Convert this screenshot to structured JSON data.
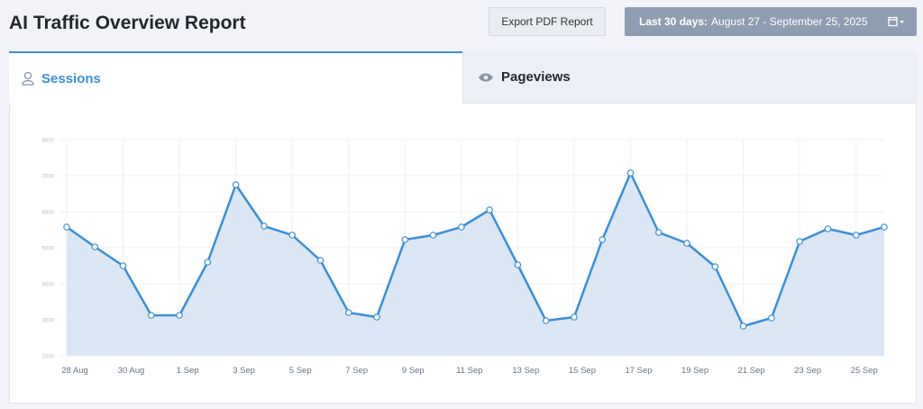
{
  "header": {
    "title": "AI Traffic Overview Report",
    "export_button": "Export PDF Report",
    "date_label": "Last 30 days:",
    "date_range": "August 27 - September 25, 2025"
  },
  "tabs": [
    "Sessions",
    "Pageviews"
  ],
  "chart_data": {
    "type": "line",
    "categories": [
      "28 Aug",
      null,
      "30 Aug",
      null,
      "1 Sep",
      null,
      "3 Sep",
      null,
      "5 Sep",
      null,
      "7 Sep",
      null,
      "9 Sep",
      null,
      "11 Sep",
      null,
      "13 Sep",
      null,
      "15 Sep",
      null,
      "17 Sep",
      null,
      "19 Sep",
      null,
      "21 Sep",
      null,
      "23 Sep",
      null,
      "25 Sep",
      null
    ],
    "series": [
      {
        "name": "Sessions",
        "color": "#3a8fd9",
        "values": [
          5575,
          5025,
          4500,
          3125,
          3125,
          4600,
          6750,
          5600,
          5350,
          4650,
          3200,
          3075,
          5225,
          5350,
          5575,
          6050,
          4525,
          2975,
          3075,
          5225,
          7075,
          5425,
          5125,
          4475,
          2825,
          3050,
          5175,
          5525,
          5350,
          5575
        ]
      }
    ],
    "ylim": [
      2000,
      8000
    ],
    "yticks": [
      2000,
      3000,
      4000,
      5000,
      6000,
      7000,
      8000
    ],
    "grid": true
  }
}
